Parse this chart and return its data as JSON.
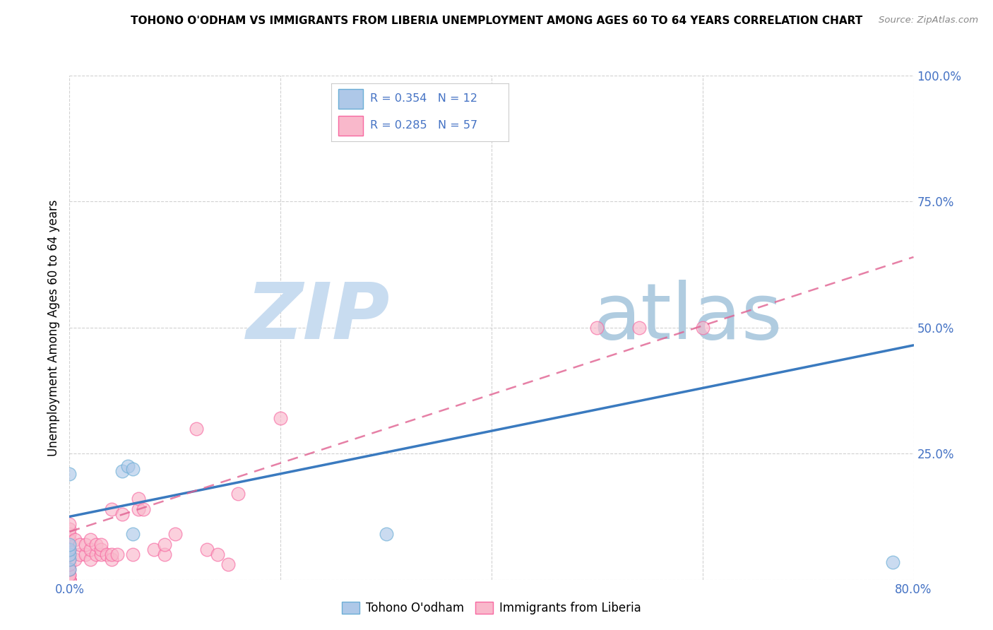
{
  "title": "TOHONO O'ODHAM VS IMMIGRANTS FROM LIBERIA UNEMPLOYMENT AMONG AGES 60 TO 64 YEARS CORRELATION CHART",
  "source": "Source: ZipAtlas.com",
  "ylabel": "Unemployment Among Ages 60 to 64 years",
  "xlim": [
    0.0,
    0.8
  ],
  "ylim": [
    0.0,
    1.0
  ],
  "blue_R": 0.354,
  "blue_N": 12,
  "pink_R": 0.285,
  "pink_N": 57,
  "blue_color": "#aec8e8",
  "pink_color": "#f9b8cb",
  "blue_edge_color": "#6baed6",
  "pink_edge_color": "#f768a1",
  "blue_line_color": "#3a7abf",
  "pink_line_color": "#e06090",
  "tick_color": "#4472c4",
  "watermark_zip_color": "#c8dcf0",
  "watermark_atlas_color": "#b0cce0",
  "blue_line_x0": 0.0,
  "blue_line_y0": 0.125,
  "blue_line_x1": 0.8,
  "blue_line_y1": 0.465,
  "pink_line_x0": 0.0,
  "pink_line_y0": 0.095,
  "pink_line_x1": 0.8,
  "pink_line_y1": 0.64,
  "blue_points_x": [
    0.0,
    0.0,
    0.0,
    0.0,
    0.0,
    0.0,
    0.05,
    0.055,
    0.06,
    0.06,
    0.3,
    0.78
  ],
  "blue_points_y": [
    0.02,
    0.04,
    0.05,
    0.06,
    0.07,
    0.21,
    0.215,
    0.225,
    0.22,
    0.09,
    0.09,
    0.035
  ],
  "pink_points_x": [
    0.0,
    0.0,
    0.0,
    0.0,
    0.0,
    0.0,
    0.0,
    0.0,
    0.0,
    0.0,
    0.0,
    0.0,
    0.0,
    0.0,
    0.0,
    0.0,
    0.0,
    0.0,
    0.0,
    0.0,
    0.005,
    0.005,
    0.01,
    0.01,
    0.015,
    0.015,
    0.02,
    0.02,
    0.02,
    0.025,
    0.025,
    0.03,
    0.03,
    0.03,
    0.035,
    0.04,
    0.04,
    0.04,
    0.045,
    0.05,
    0.06,
    0.065,
    0.065,
    0.07,
    0.08,
    0.09,
    0.09,
    0.1,
    0.12,
    0.13,
    0.14,
    0.15,
    0.16,
    0.2,
    0.5,
    0.54,
    0.6
  ],
  "pink_points_y": [
    0.0,
    0.0,
    0.0,
    0.0,
    0.0,
    0.0,
    0.0,
    0.0,
    0.01,
    0.01,
    0.02,
    0.03,
    0.04,
    0.05,
    0.06,
    0.07,
    0.08,
    0.09,
    0.1,
    0.11,
    0.04,
    0.08,
    0.05,
    0.07,
    0.05,
    0.07,
    0.04,
    0.06,
    0.08,
    0.05,
    0.07,
    0.05,
    0.06,
    0.07,
    0.05,
    0.04,
    0.05,
    0.14,
    0.05,
    0.13,
    0.05,
    0.14,
    0.16,
    0.14,
    0.06,
    0.05,
    0.07,
    0.09,
    0.3,
    0.06,
    0.05,
    0.03,
    0.17,
    0.32,
    0.5,
    0.5,
    0.5
  ],
  "background_color": "#ffffff",
  "grid_color": "#cccccc"
}
